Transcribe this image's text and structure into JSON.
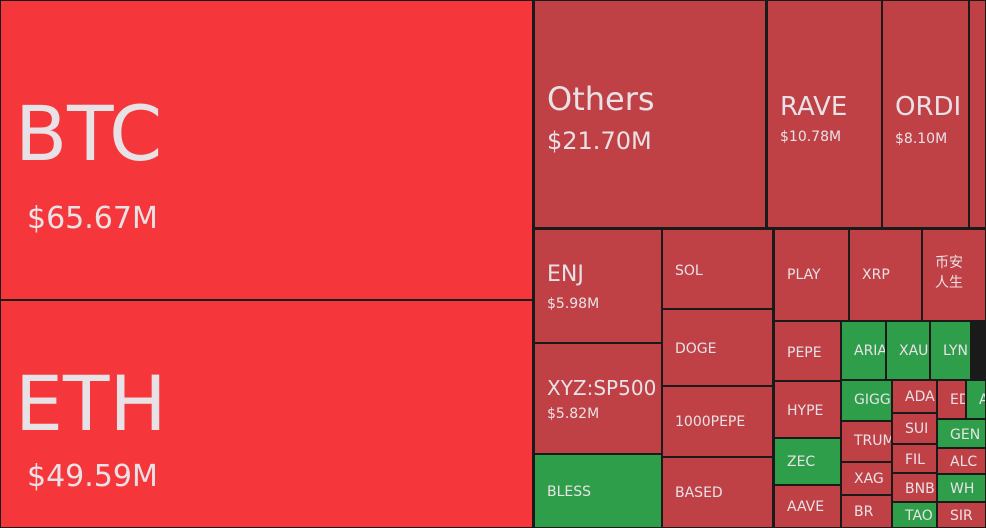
{
  "tiles": [
    {
      "label": "BTC",
      "value": "$65.67M",
      "color": "#f5363b"
    },
    {
      "label": "ETH",
      "value": "$49.59M",
      "color": "#f5363b"
    },
    {
      "label": "Others",
      "value": "$21.70M",
      "color": "#bf4146"
    },
    {
      "label": "RAVE",
      "value": "$10.78M",
      "color": "#bf4146"
    },
    {
      "label": "ORDI",
      "value": "$8.10M",
      "color": "#bf4146"
    },
    {
      "label": "ENJ",
      "value": "$5.98M",
      "color": "#bf4146"
    },
    {
      "label": "XYZ:SP500",
      "value": "$5.82M",
      "color": "#bf4146"
    },
    {
      "label": "BLESS",
      "color": "#2e9e4a"
    },
    {
      "label": "SOL",
      "color": "#bf4146"
    },
    {
      "label": "DOGE",
      "color": "#bf4146"
    },
    {
      "label": "1000PEPE",
      "color": "#bf4146"
    },
    {
      "label": "BASED",
      "color": "#bf4146"
    },
    {
      "label": "PLAY",
      "color": "#bf4146"
    },
    {
      "label": "XRP",
      "color": "#bf4146"
    },
    {
      "label": "币安人生",
      "color": "#bf4146"
    },
    {
      "label": "PEPE",
      "color": "#bf4146"
    },
    {
      "label": "ARIA",
      "color": "#2e9e4a"
    },
    {
      "label": "XAU",
      "color": "#2e9e4a"
    },
    {
      "label": "LYN",
      "color": "#2e9e4a"
    },
    {
      "label": "HYPE",
      "color": "#bf4146"
    },
    {
      "label": "ZEC",
      "color": "#2e9e4a"
    },
    {
      "label": "AAVE",
      "color": "#bf4146"
    },
    {
      "label": "GIGG",
      "color": "#2e9e4a"
    },
    {
      "label": "TRUM",
      "color": "#bf4146"
    },
    {
      "label": "XAG",
      "color": "#bf4146"
    },
    {
      "label": "BR",
      "color": "#bf4146"
    },
    {
      "label": "ADA",
      "color": "#bf4146"
    },
    {
      "label": "ED",
      "color": "#bf4146"
    },
    {
      "label": "A",
      "color": "#2e9e4a"
    },
    {
      "label": "SUI",
      "color": "#bf4146"
    },
    {
      "label": "GEN",
      "color": "#2e9e4a"
    },
    {
      "label": "FIL",
      "color": "#bf4146"
    },
    {
      "label": "ALC",
      "color": "#bf4146"
    },
    {
      "label": "BNB",
      "color": "#bf4146"
    },
    {
      "label": "WH",
      "color": "#2e9e4a"
    },
    {
      "label": "TAO",
      "color": "#2e9e4a"
    },
    {
      "label": "SIR",
      "color": "#bf4146"
    }
  ]
}
